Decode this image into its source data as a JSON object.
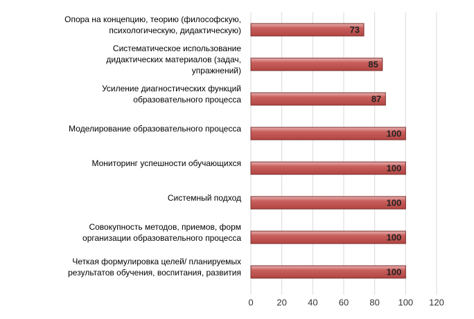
{
  "chart_data": {
    "type": "bar",
    "orientation": "horizontal",
    "categories": [
      [
        "Опора на концепцию, теорию (философскую,",
        "психологическую, дидактическую)"
      ],
      [
        "Систематическое использование",
        "дидактических материалов (задач,",
        "упражнений)"
      ],
      [
        "Усиление диагностических функций",
        "образовательного процесса"
      ],
      [
        "Моделирование образовательного процесса"
      ],
      [
        "Мониторинг успешности обучающихся"
      ],
      [
        "Системный подход"
      ],
      [
        "Совокупность методов, приемов, форм",
        "организации образовательного процесса"
      ],
      [
        "Четкая формулировка целей/ планируемых",
        "результатов обучения, воспитания, развития"
      ]
    ],
    "values": [
      73,
      85,
      87,
      100,
      100,
      100,
      100,
      100
    ],
    "color": "#c0504d",
    "xlim": [
      0,
      120
    ],
    "xticks": [
      0,
      20,
      40,
      60,
      80,
      100,
      120
    ],
    "grid": true
  }
}
